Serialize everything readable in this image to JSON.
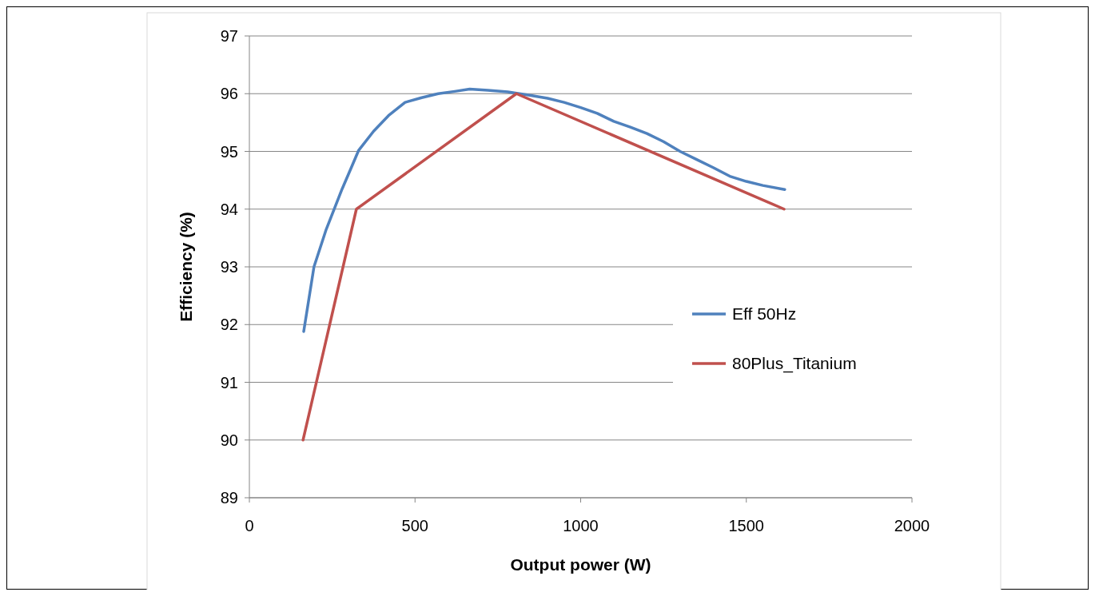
{
  "chart_data": {
    "type": "line",
    "xlabel": "Output power (W)",
    "ylabel": "Efficiency (%)",
    "xlim": [
      0,
      2000
    ],
    "xticks": [
      0,
      500,
      1000,
      1500,
      2000
    ],
    "ylim": [
      89,
      97
    ],
    "yticks": [
      89,
      90,
      91,
      92,
      93,
      94,
      95,
      96,
      97
    ],
    "grid": "y",
    "legend": "right",
    "marker": "none",
    "line_style": "solid",
    "series": [
      {
        "name": "Eff 50Hz",
        "color": "#4f81bd",
        "x": [
          164,
          195,
          232,
          280,
          310,
          330,
          375,
          420,
          470,
          520,
          570,
          620,
          665,
          720,
          780,
          850,
          900,
          950,
          1000,
          1050,
          1100,
          1150,
          1200,
          1250,
          1300,
          1350,
          1400,
          1450,
          1500,
          1550,
          1616
        ],
        "values": [
          91.88,
          93.0,
          93.65,
          94.35,
          94.75,
          95.02,
          95.35,
          95.62,
          95.85,
          95.93,
          96.0,
          96.04,
          96.08,
          96.06,
          96.03,
          95.97,
          95.92,
          95.85,
          95.76,
          95.66,
          95.52,
          95.42,
          95.31,
          95.17,
          95.0,
          94.86,
          94.72,
          94.57,
          94.48,
          94.41,
          94.34
        ]
      },
      {
        "name": "80Plus_Titanium",
        "color": "#c0504d",
        "x": [
          162,
          323,
          806,
          1614
        ],
        "values": [
          90,
          94,
          96,
          94
        ]
      }
    ]
  }
}
